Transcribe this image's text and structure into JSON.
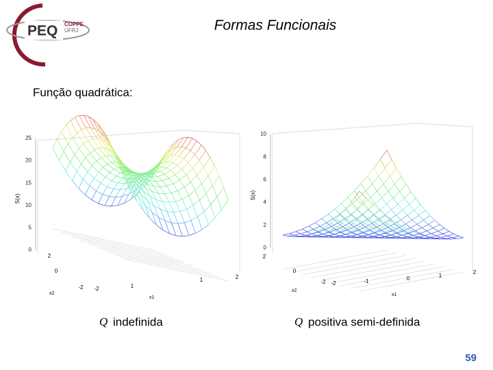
{
  "header": {
    "title": "Formas Funcionais",
    "logo": {
      "name": "PEQ",
      "top": "COPPE",
      "bottom": "UFRJ"
    }
  },
  "subtitle": "Função quadrática:",
  "plots": [
    {
      "z_label": "S(x)",
      "x1_label": "x1",
      "x2_label": "x2",
      "z_ticks": [
        "25",
        "20",
        "15",
        "10",
        "5",
        "0"
      ],
      "x2_ticks": [
        "2",
        "0",
        "-2"
      ],
      "x1_ticks": [
        "-2",
        "1",
        "1",
        "2"
      ],
      "caption": {
        "symbol": "Q",
        "text": "indefinida"
      }
    },
    {
      "z_label": "S(x)",
      "x1_label": "x1",
      "x2_label": "x2",
      "z_ticks": [
        "10",
        "8",
        "6",
        "4",
        "2",
        "0"
      ],
      "x2_ticks": [
        "2",
        "0",
        "-2"
      ],
      "x1_ticks": [
        "-2",
        "-1",
        "0",
        "1",
        "2"
      ],
      "caption": {
        "symbol": "Q",
        "text": "positiva semi-definida"
      }
    }
  ],
  "page_number": "59"
}
